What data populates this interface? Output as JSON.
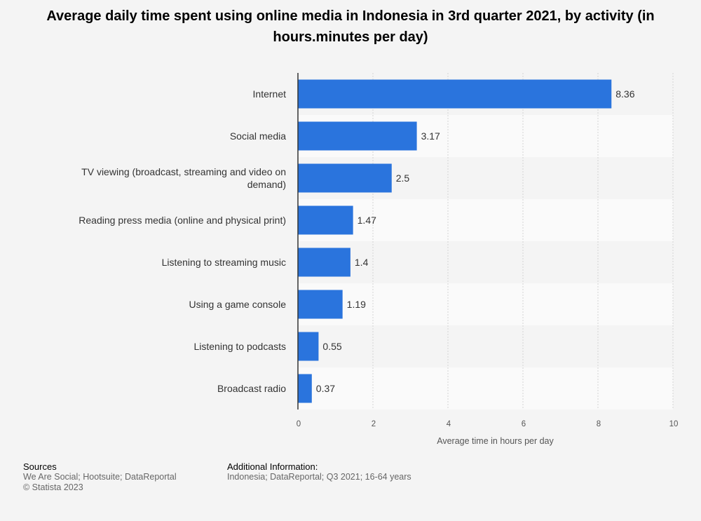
{
  "chart_data": {
    "type": "bar",
    "orientation": "horizontal",
    "title": "Average daily time spent using online media in Indonesia in 3rd quarter 2021, by activity (in hours.minutes per day)",
    "categories": [
      "Internet",
      "Social media",
      "TV viewing (broadcast, streaming and video on demand)",
      "Reading press media (online and physical print)",
      "Listening to streaming music",
      "Using a game console",
      "Listening to podcasts",
      "Broadcast radio"
    ],
    "category_lines": [
      [
        "Internet"
      ],
      [
        "Social media"
      ],
      [
        "TV viewing (broadcast, streaming and video on",
        "demand)"
      ],
      [
        "Reading press media (online and physical print)"
      ],
      [
        "Listening to streaming music"
      ],
      [
        "Using a game console"
      ],
      [
        "Listening to podcasts"
      ],
      [
        "Broadcast radio"
      ]
    ],
    "values": [
      8.36,
      3.17,
      2.5,
      1.47,
      1.4,
      1.19,
      0.55,
      0.37
    ],
    "value_labels": [
      "8.36",
      "3.17",
      "2.5",
      "1.47",
      "1.4",
      "1.19",
      "0.55",
      "0.37"
    ],
    "xlabel": "Average time in hours per day",
    "ylabel": "",
    "xlim": [
      0,
      10
    ],
    "xticks": [
      0,
      2,
      4,
      6,
      8,
      10
    ],
    "grid": true,
    "bar_color": "#2a74dd"
  },
  "footer": {
    "sources_heading": "Sources",
    "sources_text": "We Are Social; Hootsuite; DataReportal",
    "copyright": "© Statista 2023",
    "additional_heading": "Additional Information:",
    "additional_text": "Indonesia; DataReportal; Q3 2021; 16-64 years"
  }
}
